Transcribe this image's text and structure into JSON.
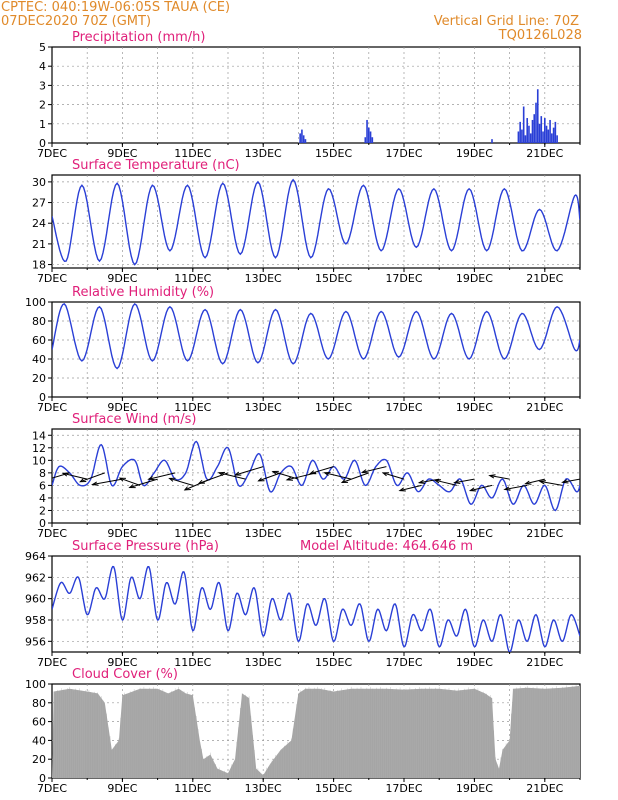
{
  "header": {
    "line1": "CPTEC:   040:19W-06:05S   TAUA (CE)",
    "line2": "07DEC2020 70Z (GMT)",
    "grid_note": "Vertical Grid Line: 70Z",
    "code": "TQ0126L028",
    "text_color": "#e08a2a",
    "title_color": "#e0207a"
  },
  "colors": {
    "line": "#2a3fd6",
    "bar": "#2a3fd6",
    "cloud": "#a9a9a9",
    "wind_arrow": "#000000",
    "grid": "#9a9a9a"
  },
  "x_axis": {
    "start_day": 7,
    "end_day": 22,
    "tick_labels": [
      {
        "day": 7,
        "label": "7DEC"
      },
      {
        "day": 9,
        "label": "9DEC"
      },
      {
        "day": 11,
        "label": "11DEC"
      },
      {
        "day": 13,
        "label": "13DEC"
      },
      {
        "day": 15,
        "label": "15DEC"
      },
      {
        "day": 17,
        "label": "17DEC"
      },
      {
        "day": 19,
        "label": "19DEC"
      },
      {
        "day": 21,
        "label": "21DEC"
      }
    ]
  },
  "chart_data": [
    {
      "id": "precip",
      "type": "bar",
      "title": "Precipitation (mm/h)",
      "ylim": [
        0,
        5
      ],
      "yticks": [
        0,
        1,
        2,
        3,
        4,
        5
      ],
      "x_unit": "day of December 2020",
      "points": [
        [
          14.05,
          0.5
        ],
        [
          14.1,
          0.7
        ],
        [
          14.15,
          0.4
        ],
        [
          14.2,
          0.2
        ],
        [
          15.9,
          0.3
        ],
        [
          15.95,
          1.2
        ],
        [
          16.0,
          0.8
        ],
        [
          16.05,
          0.6
        ],
        [
          16.1,
          0.3
        ],
        [
          19.5,
          0.2
        ],
        [
          20.25,
          0.6
        ],
        [
          20.3,
          1.1
        ],
        [
          20.35,
          0.7
        ],
        [
          20.4,
          1.9
        ],
        [
          20.45,
          0.4
        ],
        [
          20.5,
          1.3
        ],
        [
          20.55,
          0.9
        ],
        [
          20.6,
          0.5
        ],
        [
          20.65,
          1.2
        ],
        [
          20.7,
          1.5
        ],
        [
          20.75,
          2.1
        ],
        [
          20.8,
          2.8
        ],
        [
          20.85,
          1.0
        ],
        [
          20.9,
          1.4
        ],
        [
          20.95,
          0.6
        ],
        [
          21.0,
          1.3
        ],
        [
          21.05,
          0.9
        ],
        [
          21.1,
          0.7
        ],
        [
          21.15,
          1.2
        ],
        [
          21.2,
          0.5
        ],
        [
          21.25,
          0.8
        ],
        [
          21.3,
          1.1
        ],
        [
          21.35,
          0.4
        ]
      ]
    },
    {
      "id": "temp",
      "type": "line",
      "title": "Surface Temperature (nC)",
      "ylim": [
        17.5,
        31
      ],
      "yticks": [
        18,
        21,
        24,
        27,
        30
      ],
      "x_unit": "day of December 2020",
      "extrema": [
        [
          7.0,
          25
        ],
        [
          7.4,
          18.5
        ],
        [
          7.85,
          29.5
        ],
        [
          8.35,
          18.5
        ],
        [
          8.85,
          29.8
        ],
        [
          9.35,
          18.0
        ],
        [
          9.85,
          29.5
        ],
        [
          10.35,
          20.0
        ],
        [
          10.85,
          29.5
        ],
        [
          11.35,
          19.0
        ],
        [
          11.85,
          29.8
        ],
        [
          12.35,
          19.5
        ],
        [
          12.85,
          30.0
        ],
        [
          13.35,
          19.0
        ],
        [
          13.85,
          30.3
        ],
        [
          14.35,
          19.0
        ],
        [
          14.85,
          29.0
        ],
        [
          15.35,
          21.0
        ],
        [
          15.85,
          29.5
        ],
        [
          16.35,
          20.0
        ],
        [
          16.85,
          29.0
        ],
        [
          17.35,
          20.5
        ],
        [
          17.85,
          29.0
        ],
        [
          18.35,
          20.0
        ],
        [
          18.85,
          29.0
        ],
        [
          19.35,
          20.0
        ],
        [
          19.85,
          29.0
        ],
        [
          20.35,
          20.0
        ],
        [
          20.85,
          26.0
        ],
        [
          21.35,
          20.0
        ],
        [
          21.85,
          28.0
        ],
        [
          22.0,
          24.5
        ]
      ]
    },
    {
      "id": "rh",
      "type": "line",
      "title": "Relative Humidity (%)",
      "ylim": [
        0,
        100
      ],
      "yticks": [
        0,
        20,
        40,
        60,
        80,
        100
      ],
      "x_unit": "day of December 2020",
      "extrema": [
        [
          7.0,
          50
        ],
        [
          7.35,
          98
        ],
        [
          7.85,
          38
        ],
        [
          8.35,
          95
        ],
        [
          8.85,
          30
        ],
        [
          9.35,
          98
        ],
        [
          9.85,
          38
        ],
        [
          10.35,
          95
        ],
        [
          10.85,
          38
        ],
        [
          11.35,
          92
        ],
        [
          11.85,
          35
        ],
        [
          12.35,
          92
        ],
        [
          12.85,
          36
        ],
        [
          13.35,
          92
        ],
        [
          13.85,
          35
        ],
        [
          14.35,
          88
        ],
        [
          14.85,
          40
        ],
        [
          15.35,
          90
        ],
        [
          15.85,
          40
        ],
        [
          16.35,
          90
        ],
        [
          16.85,
          42
        ],
        [
          17.35,
          90
        ],
        [
          17.85,
          40
        ],
        [
          18.35,
          88
        ],
        [
          18.85,
          40
        ],
        [
          19.35,
          90
        ],
        [
          19.85,
          40
        ],
        [
          20.35,
          88
        ],
        [
          20.85,
          50
        ],
        [
          21.35,
          95
        ],
        [
          21.85,
          50
        ],
        [
          22.0,
          60
        ]
      ]
    },
    {
      "id": "wind",
      "type": "line",
      "title": "Surface Wind (m/s)",
      "ylim": [
        0,
        15
      ],
      "yticks": [
        0,
        2,
        4,
        6,
        8,
        10,
        12,
        14
      ],
      "x_unit": "day of December 2020",
      "extrema": [
        [
          7.0,
          6
        ],
        [
          7.2,
          9
        ],
        [
          7.5,
          8
        ],
        [
          7.8,
          6
        ],
        [
          8.1,
          7
        ],
        [
          8.4,
          12.5
        ],
        [
          8.7,
          6
        ],
        [
          9.0,
          9
        ],
        [
          9.35,
          10
        ],
        [
          9.6,
          6
        ],
        [
          9.9,
          8
        ],
        [
          10.2,
          10
        ],
        [
          10.5,
          7
        ],
        [
          10.8,
          8
        ],
        [
          11.1,
          13
        ],
        [
          11.4,
          7
        ],
        [
          11.7,
          9
        ],
        [
          12.0,
          12
        ],
        [
          12.3,
          6
        ],
        [
          12.6,
          8
        ],
        [
          12.9,
          11
        ],
        [
          13.2,
          5
        ],
        [
          13.5,
          8
        ],
        [
          13.8,
          9
        ],
        [
          14.1,
          6
        ],
        [
          14.4,
          10
        ],
        [
          14.7,
          7
        ],
        [
          15.0,
          9
        ],
        [
          15.3,
          7
        ],
        [
          15.6,
          10
        ],
        [
          15.9,
          6
        ],
        [
          16.2,
          9
        ],
        [
          16.5,
          10
        ],
        [
          16.8,
          6
        ],
        [
          17.1,
          8
        ],
        [
          17.4,
          5
        ],
        [
          17.7,
          7
        ],
        [
          18.0,
          6
        ],
        [
          18.3,
          5
        ],
        [
          18.6,
          7
        ],
        [
          18.9,
          3
        ],
        [
          19.2,
          6
        ],
        [
          19.5,
          4
        ],
        [
          19.8,
          7
        ],
        [
          20.1,
          3
        ],
        [
          20.4,
          6
        ],
        [
          20.7,
          3
        ],
        [
          21.0,
          6
        ],
        [
          21.3,
          2
        ],
        [
          21.6,
          7
        ],
        [
          21.9,
          5
        ],
        [
          22.0,
          6
        ]
      ],
      "arrows": [
        [
          7.5,
          8,
          1.2,
          0.5
        ],
        [
          8.0,
          7,
          1.0,
          -0.4
        ],
        [
          8.5,
          8,
          1.1,
          0.6
        ],
        [
          9.0,
          7,
          1.2,
          0.3
        ],
        [
          9.5,
          6,
          0.9,
          -0.6
        ],
        [
          10.0,
          7,
          1.2,
          0.5
        ],
        [
          10.5,
          8,
          1.1,
          0.4
        ],
        [
          11.0,
          6,
          1.0,
          -0.5
        ],
        [
          11.5,
          7,
          1.2,
          0.7
        ],
        [
          12.0,
          8,
          1.3,
          0.6
        ],
        [
          12.5,
          7,
          1.1,
          -0.4
        ],
        [
          13.0,
          9,
          1.2,
          0.5
        ],
        [
          13.5,
          8,
          1.0,
          0.6
        ],
        [
          14.0,
          7,
          1.1,
          -0.5
        ],
        [
          14.5,
          8,
          1.2,
          0.4
        ],
        [
          15.0,
          9,
          1.0,
          0.5
        ],
        [
          15.5,
          7,
          1.1,
          -0.4
        ],
        [
          16.0,
          8,
          1.2,
          0.6
        ],
        [
          16.5,
          9,
          1.0,
          0.4
        ],
        [
          17.0,
          7,
          0.9,
          -0.5
        ],
        [
          17.5,
          6,
          0.9,
          0.4
        ],
        [
          18.0,
          7,
          0.8,
          0.3
        ],
        [
          18.5,
          6,
          0.9,
          -0.4
        ],
        [
          19.0,
          7,
          0.8,
          0.3
        ],
        [
          19.5,
          6,
          0.9,
          0.4
        ],
        [
          20.0,
          7,
          0.8,
          -0.3
        ],
        [
          20.5,
          6,
          0.9,
          0.3
        ],
        [
          21.0,
          7,
          0.8,
          0.4
        ],
        [
          21.5,
          6,
          0.9,
          -0.3
        ],
        [
          22.0,
          7,
          0.7,
          0.3
        ]
      ]
    },
    {
      "id": "press",
      "type": "line",
      "title": "Surface Pressure (hPa)",
      "ylim": [
        955,
        964
      ],
      "yticks": [
        956,
        958,
        960,
        962,
        964
      ],
      "x_unit": "day of December 2020",
      "extrema": [
        [
          7.0,
          959
        ],
        [
          7.25,
          961.5
        ],
        [
          7.5,
          960.5
        ],
        [
          7.75,
          962
        ],
        [
          8.0,
          958.5
        ],
        [
          8.25,
          961
        ],
        [
          8.5,
          960
        ],
        [
          8.75,
          963
        ],
        [
          9.0,
          958
        ],
        [
          9.25,
          962
        ],
        [
          9.5,
          960
        ],
        [
          9.75,
          963
        ],
        [
          10.0,
          958
        ],
        [
          10.25,
          961.5
        ],
        [
          10.5,
          959.5
        ],
        [
          10.75,
          962.5
        ],
        [
          11.0,
          957
        ],
        [
          11.25,
          961
        ],
        [
          11.5,
          959
        ],
        [
          11.75,
          961.5
        ],
        [
          12.0,
          957
        ],
        [
          12.25,
          960.5
        ],
        [
          12.5,
          958.5
        ],
        [
          12.75,
          961
        ],
        [
          13.0,
          956.5
        ],
        [
          13.25,
          960
        ],
        [
          13.5,
          958
        ],
        [
          13.75,
          960.5
        ],
        [
          14.0,
          956
        ],
        [
          14.25,
          959.5
        ],
        [
          14.5,
          957.5
        ],
        [
          14.75,
          960
        ],
        [
          15.0,
          956
        ],
        [
          15.25,
          959
        ],
        [
          15.5,
          957.5
        ],
        [
          15.75,
          959.5
        ],
        [
          16.0,
          956
        ],
        [
          16.25,
          959
        ],
        [
          16.5,
          957
        ],
        [
          16.75,
          959.5
        ],
        [
          17.0,
          955.5
        ],
        [
          17.25,
          958.5
        ],
        [
          17.5,
          957
        ],
        [
          17.75,
          959
        ],
        [
          18.0,
          955.5
        ],
        [
          18.25,
          958
        ],
        [
          18.5,
          956.5
        ],
        [
          18.75,
          959
        ],
        [
          19.0,
          955.5
        ],
        [
          19.25,
          958
        ],
        [
          19.5,
          956
        ],
        [
          19.75,
          958.5
        ],
        [
          20.0,
          955
        ],
        [
          20.25,
          958
        ],
        [
          20.5,
          956
        ],
        [
          20.75,
          958.5
        ],
        [
          21.0,
          955.5
        ],
        [
          21.25,
          958
        ],
        [
          21.5,
          956
        ],
        [
          21.75,
          958.5
        ],
        [
          22.0,
          956.5
        ]
      ]
    },
    {
      "id": "cloud",
      "type": "area",
      "title": "Cloud Cover (%)",
      "ylim": [
        0,
        100
      ],
      "yticks": [
        0,
        20,
        40,
        60,
        80,
        100
      ],
      "x_unit": "day of December 2020",
      "points": [
        [
          7.0,
          0
        ],
        [
          7.05,
          92
        ],
        [
          7.5,
          95
        ],
        [
          8.0,
          92
        ],
        [
          8.3,
          90
        ],
        [
          8.5,
          80
        ],
        [
          8.7,
          30
        ],
        [
          8.9,
          40
        ],
        [
          9.0,
          88
        ],
        [
          9.5,
          95
        ],
        [
          10.0,
          95
        ],
        [
          10.3,
          90
        ],
        [
          10.6,
          95
        ],
        [
          10.8,
          90
        ],
        [
          11.0,
          88
        ],
        [
          11.2,
          40
        ],
        [
          11.3,
          20
        ],
        [
          11.5,
          25
        ],
        [
          11.7,
          10
        ],
        [
          12.0,
          5
        ],
        [
          12.2,
          20
        ],
        [
          12.4,
          90
        ],
        [
          12.6,
          85
        ],
        [
          12.8,
          10
        ],
        [
          13.0,
          3
        ],
        [
          13.2,
          15
        ],
        [
          13.5,
          30
        ],
        [
          13.8,
          40
        ],
        [
          14.0,
          90
        ],
        [
          14.2,
          95
        ],
        [
          14.6,
          95
        ],
        [
          15.0,
          92
        ],
        [
          15.5,
          95
        ],
        [
          16.0,
          95
        ],
        [
          16.5,
          95
        ],
        [
          17.0,
          94
        ],
        [
          17.5,
          95
        ],
        [
          18.0,
          95
        ],
        [
          18.5,
          93
        ],
        [
          19.0,
          95
        ],
        [
          19.3,
          90
        ],
        [
          19.5,
          85
        ],
        [
          19.6,
          20
        ],
        [
          19.7,
          10
        ],
        [
          19.8,
          30
        ],
        [
          20.0,
          40
        ],
        [
          20.1,
          95
        ],
        [
          20.5,
          96
        ],
        [
          21.0,
          95
        ],
        [
          21.5,
          96
        ],
        [
          22.0,
          98
        ]
      ]
    }
  ],
  "extra_labels": {
    "model_altitude": "Model Altitude: 464.646 m"
  }
}
